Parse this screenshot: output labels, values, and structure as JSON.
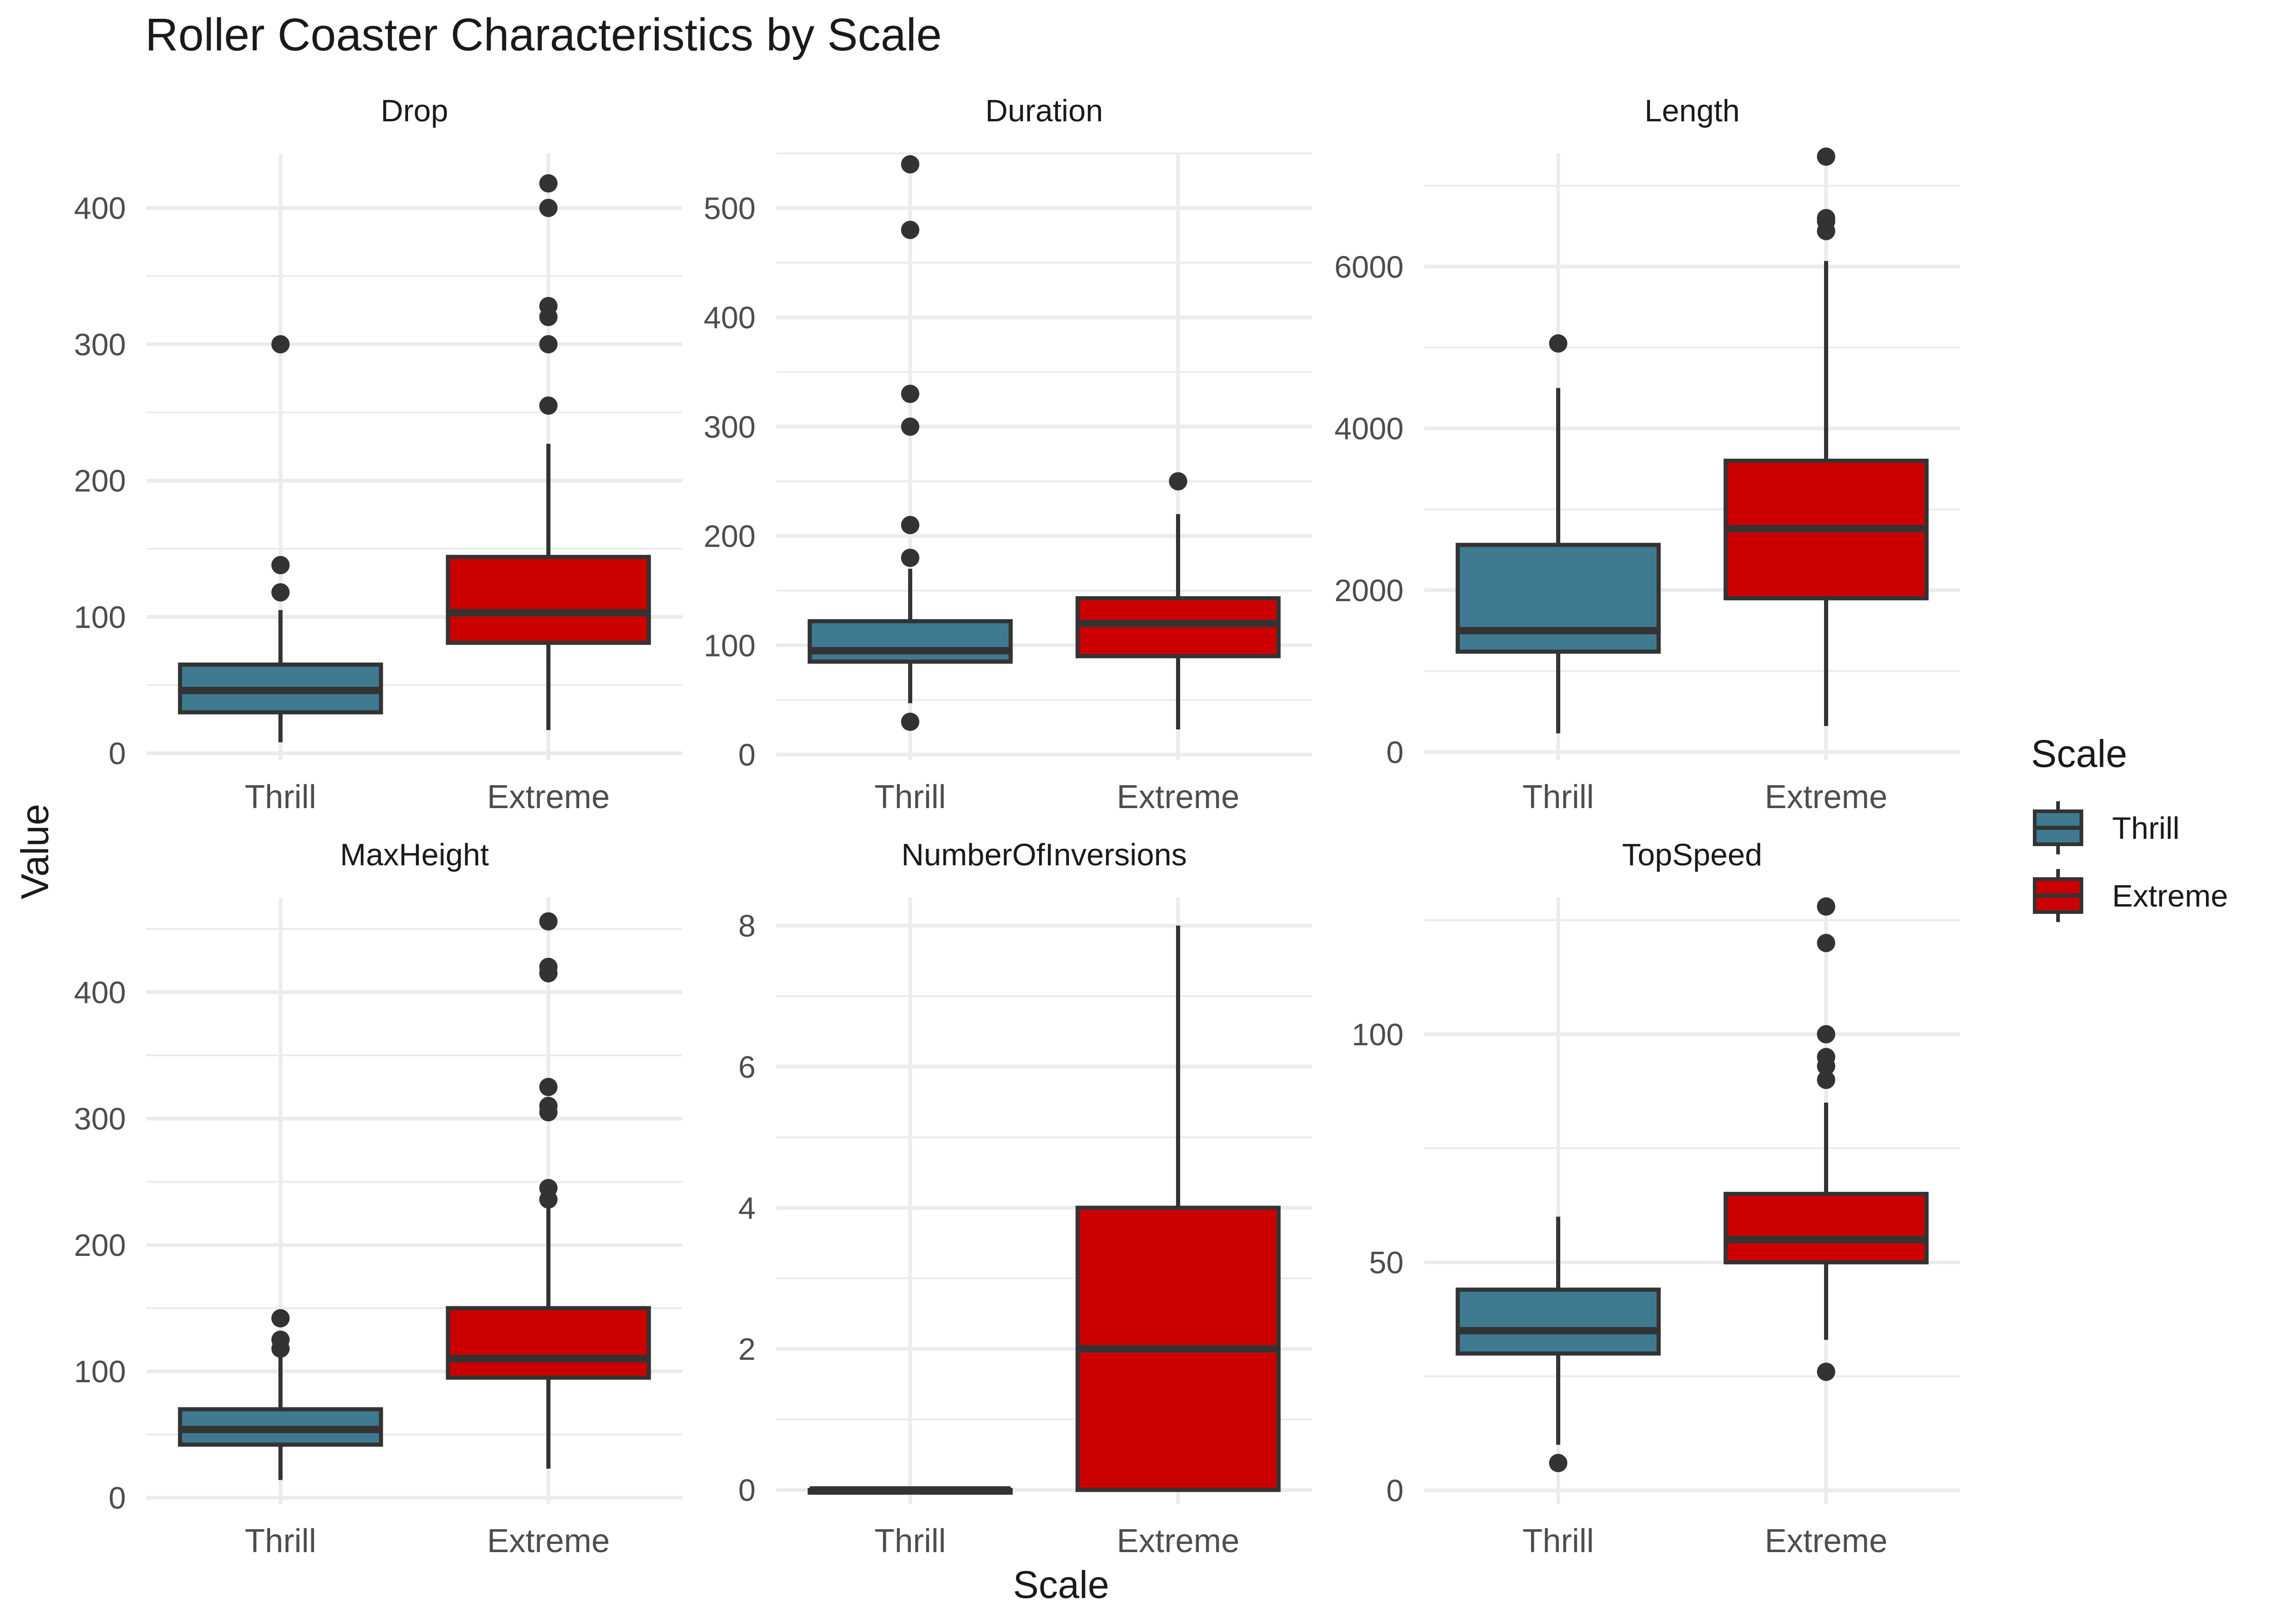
{
  "chart_data": {
    "type": "boxplot",
    "title": "Roller Coaster Characteristics by Scale",
    "xlabel": "Scale",
    "ylabel": "Value",
    "grid": true,
    "legend": {
      "title": "Scale",
      "position": "right",
      "entries": [
        {
          "label": "Thrill",
          "color": "#3f7a91"
        },
        {
          "label": "Extreme",
          "color": "#cc0000"
        }
      ]
    },
    "categories": [
      "Thrill",
      "Extreme"
    ],
    "colors": {
      "Thrill": "#3f7a91",
      "Extreme": "#cc0000",
      "outline": "#333333"
    },
    "facets": [
      {
        "name": "Drop",
        "ylim": [
          -5,
          440
        ],
        "yticks": [
          0,
          100,
          200,
          300,
          400
        ],
        "boxes": [
          {
            "category": "Thrill",
            "whisker_low": 8,
            "q1": 30,
            "median": 46,
            "q3": 65,
            "whisker_high": 105,
            "outliers": [
              118,
              138,
              300
            ]
          },
          {
            "category": "Extreme",
            "whisker_low": 17,
            "q1": 81,
            "median": 103,
            "q3": 144,
            "whisker_high": 227,
            "outliers": [
              255,
              300,
              320,
              328,
              400,
              418
            ]
          }
        ]
      },
      {
        "name": "Duration",
        "ylim": [
          -5,
          550
        ],
        "yticks": [
          0,
          100,
          200,
          300,
          400,
          500
        ],
        "boxes": [
          {
            "category": "Thrill",
            "whisker_low": 47,
            "q1": 85,
            "median": 95,
            "q3": 122,
            "whisker_high": 170,
            "outliers": [
              30,
              180,
              210,
              300,
              330,
              480,
              540
            ]
          },
          {
            "category": "Extreme",
            "whisker_low": 23,
            "q1": 90,
            "median": 120,
            "q3": 143,
            "whisker_high": 220,
            "outliers": [
              250
            ]
          }
        ]
      },
      {
        "name": "Length",
        "ylim": [
          -100,
          7400
        ],
        "yticks": [
          0,
          2000,
          4000,
          6000
        ],
        "boxes": [
          {
            "category": "Thrill",
            "whisker_low": 230,
            "q1": 1240,
            "median": 1500,
            "q3": 2560,
            "whisker_high": 4500,
            "outliers": [
              5050
            ]
          },
          {
            "category": "Extreme",
            "whisker_low": 320,
            "q1": 1900,
            "median": 2760,
            "q3": 3600,
            "whisker_high": 6070,
            "outliers": [
              6440,
              6560,
              6600,
              7360
            ]
          }
        ]
      },
      {
        "name": "MaxHeight",
        "ylim": [
          -5,
          475
        ],
        "yticks": [
          0,
          100,
          200,
          300,
          400
        ],
        "boxes": [
          {
            "category": "Thrill",
            "whisker_low": 14,
            "q1": 42,
            "median": 54,
            "q3": 70,
            "whisker_high": 112,
            "outliers": [
              118,
              125,
              142
            ]
          },
          {
            "category": "Extreme",
            "whisker_low": 23,
            "q1": 95,
            "median": 110,
            "q3": 150,
            "whisker_high": 230,
            "outliers": [
              236,
              245,
              305,
              310,
              325,
              415,
              420,
              456
            ]
          }
        ]
      },
      {
        "name": "NumberOfInversions",
        "ylim": [
          -0.2,
          8.4
        ],
        "yticks": [
          0,
          2,
          4,
          6,
          8
        ],
        "boxes": [
          {
            "category": "Thrill",
            "whisker_low": 0,
            "q1": 0,
            "median": 0,
            "q3": 0,
            "whisker_high": 0,
            "outliers": []
          },
          {
            "category": "Extreme",
            "whisker_low": 0,
            "q1": 0,
            "median": 2,
            "q3": 4,
            "whisker_high": 8,
            "outliers": []
          }
        ]
      },
      {
        "name": "TopSpeed",
        "ylim": [
          -3,
          130
        ],
        "yticks": [
          0,
          50,
          100
        ],
        "boxes": [
          {
            "category": "Thrill",
            "whisker_low": 10,
            "q1": 30,
            "median": 35,
            "q3": 44,
            "whisker_high": 60,
            "outliers": [
              6
            ]
          },
          {
            "category": "Extreme",
            "whisker_low": 33,
            "q1": 50,
            "median": 55,
            "q3": 65,
            "whisker_high": 85,
            "outliers": [
              26,
              90,
              93,
              95,
              100,
              120,
              128
            ]
          }
        ]
      }
    ]
  }
}
